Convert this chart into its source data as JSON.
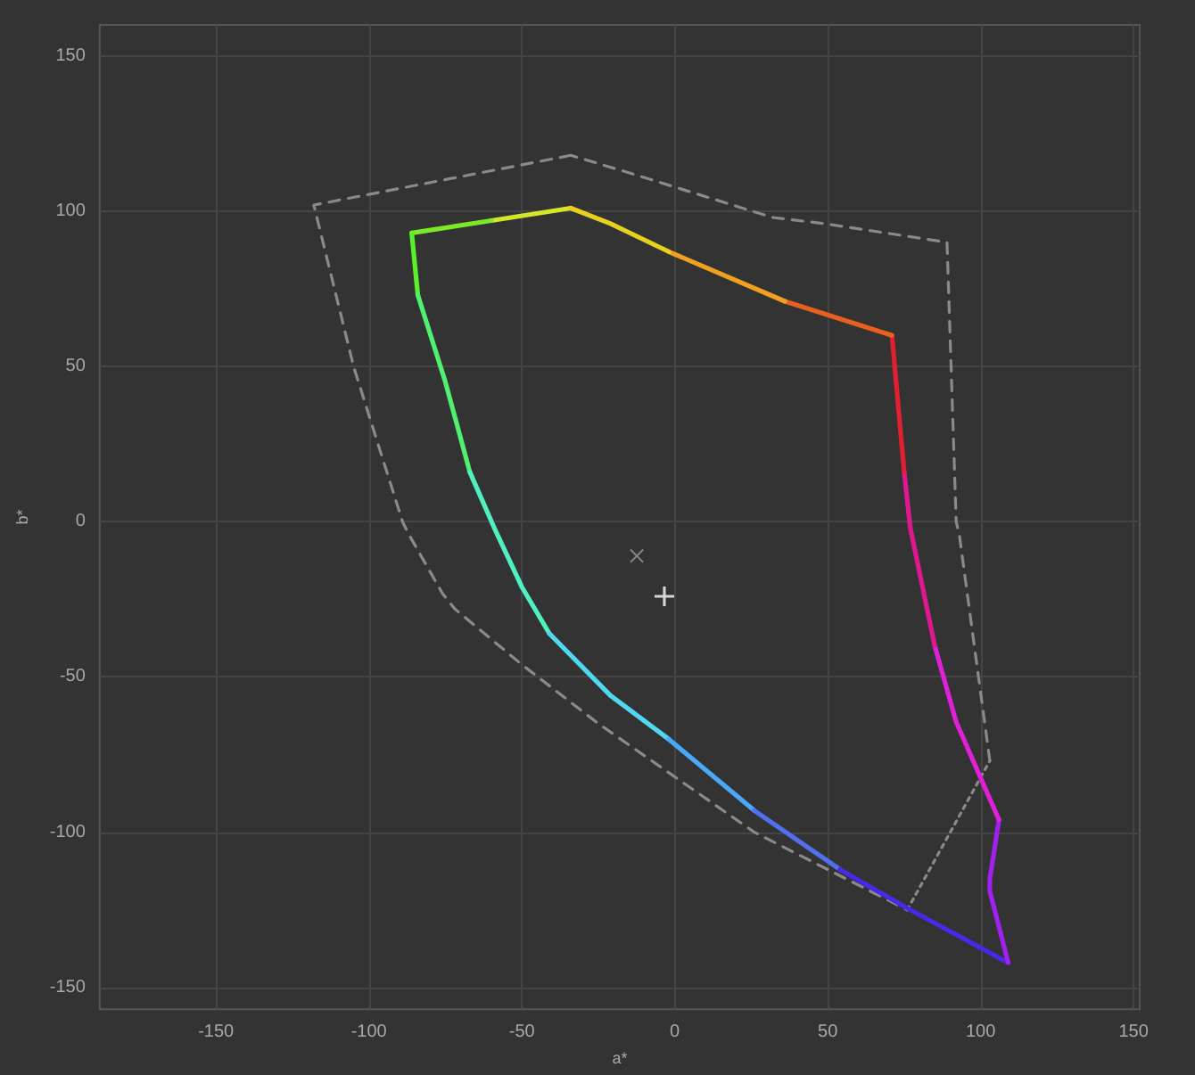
{
  "chart_data": {
    "type": "line",
    "xlabel": "a*",
    "ylabel": "b*",
    "xlim": [
      -188,
      152
    ],
    "ylim": [
      -157,
      160
    ],
    "xticks": [
      -150,
      -100,
      -50,
      0,
      50,
      100,
      150
    ],
    "yticks": [
      -150,
      -100,
      -50,
      0,
      50,
      100,
      150
    ],
    "grid": true,
    "marker": "none",
    "line_style": "solid",
    "series": [
      {
        "color": "#8a8a8a",
        "line_style": "dashed",
        "x": [
          -34,
          -118,
          -105,
          -89,
          -87,
          -76,
          -72,
          -50,
          -25,
          26,
          76
        ],
        "values": [
          118,
          102,
          50,
          0,
          -4,
          -23,
          -28,
          -46,
          -65,
          -100,
          -125
        ]
      },
      {
        "color": "#8a8a8a",
        "line_style": "dotted",
        "x": [
          76,
          103
        ],
        "values": [
          -125,
          -77
        ]
      },
      {
        "color": "#8a8a8a",
        "line_style": "dashed",
        "x": [
          103,
          93,
          92,
          89,
          49,
          32,
          -17,
          -34
        ],
        "values": [
          -77,
          -4,
          0,
          90,
          96,
          98,
          113,
          118
        ]
      },
      {
        "color": "#d4e62a",
        "x": [
          -34,
          -60
        ],
        "values": [
          101,
          97
        ]
      },
      {
        "color": "#7be828",
        "x": [
          -60,
          -86
        ],
        "values": [
          97,
          93
        ]
      },
      {
        "color": "#5af02c",
        "x": [
          -86,
          -84
        ],
        "values": [
          93,
          73
        ]
      },
      {
        "color": "#50f070",
        "x": [
          -84,
          -75,
          -67
        ],
        "values": [
          73,
          45,
          16
        ]
      },
      {
        "color": "#50f0c0",
        "x": [
          -67,
          -59,
          -50,
          -41
        ],
        "values": [
          16,
          -2,
          -21,
          -36
        ]
      },
      {
        "color": "#50d8f0",
        "x": [
          -41,
          -21,
          -2
        ],
        "values": [
          -36,
          -56,
          -70
        ]
      },
      {
        "color": "#4aa8f8",
        "x": [
          -2,
          26
        ],
        "values": [
          -70,
          -93
        ]
      },
      {
        "color": "#5070f0",
        "x": [
          26,
          54
        ],
        "values": [
          -93,
          -112
        ]
      },
      {
        "color": "#4a28e8",
        "x": [
          54,
          77,
          109
        ],
        "values": [
          -112,
          -125,
          -142
        ]
      },
      {
        "color": "#a020f0",
        "x": [
          109,
          103,
          103,
          106
        ],
        "values": [
          -142,
          -119,
          -115,
          -96
        ]
      },
      {
        "color": "#e020d8",
        "x": [
          106,
          92,
          85
        ],
        "values": [
          -96,
          -64.5,
          -40
        ]
      },
      {
        "color": "#e01890",
        "x": [
          85,
          77,
          75
        ],
        "values": [
          -40,
          -2,
          16
        ]
      },
      {
        "color": "#e02030",
        "x": [
          75,
          71
        ],
        "values": [
          16,
          60
        ]
      },
      {
        "color": "#e86020",
        "x": [
          71,
          36
        ],
        "values": [
          60,
          71
        ]
      },
      {
        "color": "#f0a020",
        "x": [
          36,
          -2
        ],
        "values": [
          71,
          87
        ]
      },
      {
        "color": "#e8d020",
        "x": [
          -2,
          -21,
          -34
        ],
        "values": [
          87,
          96,
          101
        ]
      },
      {
        "type": "scatter",
        "marker": "x",
        "color": "#9a9a9a",
        "x": [
          -12.4
        ],
        "values": [
          -11
        ]
      },
      {
        "type": "scatter",
        "marker": "cross",
        "color": "#ffffff",
        "x": [
          -3.4
        ],
        "values": [
          -24
        ]
      }
    ]
  }
}
